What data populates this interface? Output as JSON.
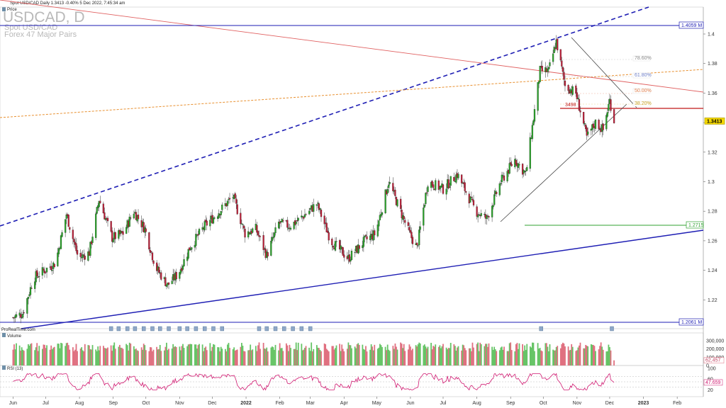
{
  "header": {
    "title": "Spot USD/CAD Daily 1.3413 -0.40% 5 Dec 2022, 7:45:34 am",
    "watermark_symbol": "USDCAD, D",
    "watermark_name": "Spot USD/CAD",
    "watermark_group": "Forex 47 Major Pairs",
    "footer_brand": "ProRealTime.com"
  },
  "panels": {
    "price_label": "Price",
    "volume_label": "Volume",
    "rsi_label": "RSI (13)"
  },
  "colors": {
    "bull": "#2aa52a",
    "bear": "#c0203a",
    "channel": "#1e1eb4",
    "resistance": "#e06060",
    "fib_line": "#e89030",
    "support_green": "#30a030",
    "level_red": "#c01818",
    "rsi": "#d01870",
    "price_tag": "#f5d800"
  },
  "chart_data": [
    {
      "type": "line",
      "name": "price-panel",
      "x_tick_labels": [
        "Jun",
        "Jul",
        "Aug",
        "Sep",
        "Oct",
        "Nov",
        "Dec",
        "2022",
        "Feb",
        "Mar",
        "Apr",
        "May",
        "Jun",
        "Jul",
        "Aug",
        "Sep",
        "Oct",
        "Nov",
        "Dec",
        "2023",
        "Feb"
      ],
      "y_tick_labels": [
        "1.4",
        "1.38",
        "1.36",
        "1.34",
        "1.32",
        "1.3",
        "1.28",
        "1.26",
        "1.24",
        "1.22"
      ],
      "ylim": [
        1.2,
        1.42
      ],
      "close_path": [
        [
          "2021-06-01",
          1.208
        ],
        [
          "2021-06-10",
          1.211
        ],
        [
          "2021-06-20",
          1.235
        ],
        [
          "2021-06-30",
          1.24
        ],
        [
          "2021-07-10",
          1.245
        ],
        [
          "2021-07-20",
          1.278
        ],
        [
          "2021-07-31",
          1.248
        ],
        [
          "2021-08-10",
          1.252
        ],
        [
          "2021-08-19",
          1.288
        ],
        [
          "2021-08-31",
          1.262
        ],
        [
          "2021-09-10",
          1.265
        ],
        [
          "2021-09-20",
          1.28
        ],
        [
          "2021-09-30",
          1.268
        ],
        [
          "2021-10-10",
          1.242
        ],
        [
          "2021-10-21",
          1.23
        ],
        [
          "2021-10-31",
          1.238
        ],
        [
          "2021-11-10",
          1.255
        ],
        [
          "2021-11-24",
          1.27
        ],
        [
          "2021-12-05",
          1.278
        ],
        [
          "2021-12-20",
          1.29
        ],
        [
          "2021-12-31",
          1.265
        ],
        [
          "2022-01-10",
          1.268
        ],
        [
          "2022-01-20",
          1.25
        ],
        [
          "2022-01-31",
          1.272
        ],
        [
          "2022-02-10",
          1.27
        ],
        [
          "2022-02-20",
          1.275
        ],
        [
          "2022-03-07",
          1.285
        ],
        [
          "2022-03-20",
          1.26
        ],
        [
          "2022-04-05",
          1.248
        ],
        [
          "2022-04-20",
          1.26
        ],
        [
          "2022-04-30",
          1.265
        ],
        [
          "2022-05-12",
          1.3
        ],
        [
          "2022-05-31",
          1.265
        ],
        [
          "2022-06-07",
          1.255
        ],
        [
          "2022-06-17",
          1.3
        ],
        [
          "2022-07-01",
          1.295
        ],
        [
          "2022-07-14",
          1.305
        ],
        [
          "2022-07-31",
          1.28
        ],
        [
          "2022-08-10",
          1.275
        ],
        [
          "2022-08-23",
          1.3
        ],
        [
          "2022-09-05",
          1.315
        ],
        [
          "2022-09-15",
          1.305
        ],
        [
          "2022-09-28",
          1.375
        ],
        [
          "2022-10-06",
          1.375
        ],
        [
          "2022-10-13",
          1.395
        ],
        [
          "2022-10-21",
          1.365
        ],
        [
          "2022-10-31",
          1.36
        ],
        [
          "2022-11-10",
          1.33
        ],
        [
          "2022-11-18",
          1.34
        ],
        [
          "2022-11-25",
          1.335
        ],
        [
          "2022-12-01",
          1.355
        ],
        [
          "2022-12-05",
          1.3413
        ]
      ],
      "price_tags": [
        {
          "value": 1.4059,
          "label": "1.4059",
          "style": "channel"
        },
        {
          "value": 1.3413,
          "label": "1.3413",
          "style": "last"
        },
        {
          "value": 1.2715,
          "label": "1.2715",
          "style": "support"
        },
        {
          "value": 1.2061,
          "label": "1.2061",
          "style": "channel"
        }
      ],
      "level_labels": [
        {
          "label": "78.60%",
          "value": 1.381
        },
        {
          "label": "61.80%",
          "value": 1.37
        },
        {
          "label": "50.00%",
          "value": 1.36
        },
        {
          "label": "38.20%",
          "value": 1.35
        },
        {
          "label": "3498",
          "value": 1.349
        }
      ]
    },
    {
      "type": "bar",
      "name": "volume-panel",
      "y_tick_labels": [
        "300,000",
        "200,000",
        "100,000",
        "0"
      ],
      "last_value_label": "62,457",
      "last_value": 62457
    },
    {
      "type": "line",
      "name": "rsi-panel",
      "y_tick_labels": [
        "100",
        "60",
        "20"
      ],
      "last_value_label": "47.659",
      "last_value": 47.659,
      "ylim": [
        0,
        100
      ]
    }
  ]
}
